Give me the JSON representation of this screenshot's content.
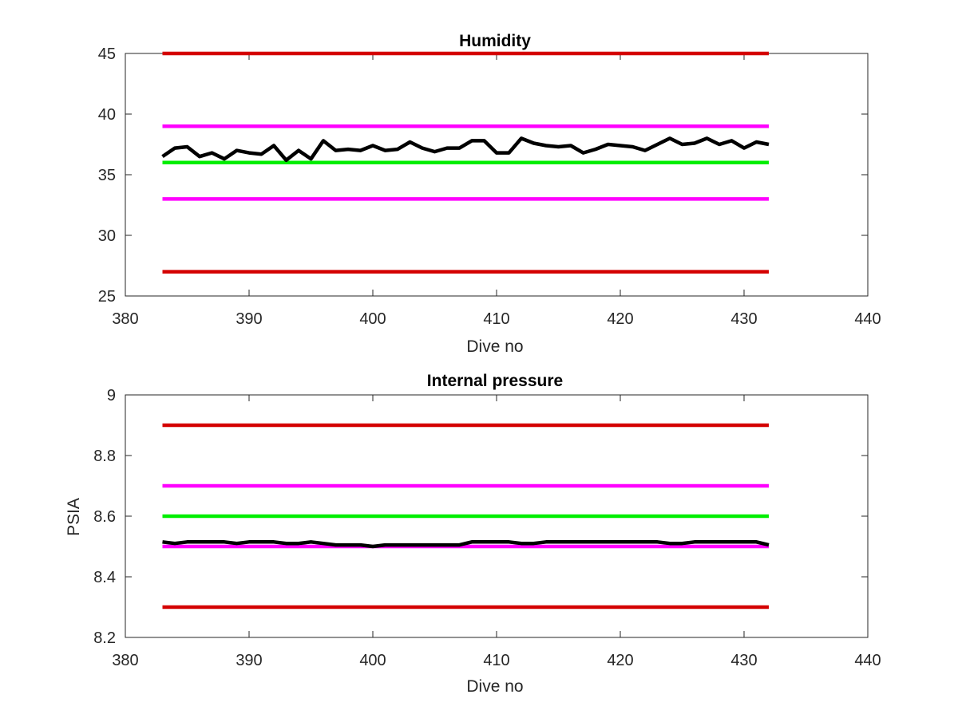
{
  "chart_data": [
    {
      "type": "line",
      "title": "Humidity",
      "xlabel": "Dive no",
      "ylabel": "",
      "xlim": [
        380,
        440
      ],
      "ylim": [
        25,
        45
      ],
      "xticks": [
        "380",
        "390",
        "400",
        "410",
        "420",
        "430",
        "440"
      ],
      "yticks": [
        "25",
        "30",
        "35",
        "40",
        "45"
      ],
      "grid": false,
      "limits": [
        {
          "value": 45,
          "color": "#d40000"
        },
        {
          "value": 39,
          "color": "#ff00ff"
        },
        {
          "value": 36,
          "color": "#00ee00"
        },
        {
          "value": 33,
          "color": "#ff00ff"
        },
        {
          "value": 27,
          "color": "#d40000"
        }
      ],
      "limits_x_range": [
        383,
        432
      ],
      "series": [
        {
          "color": "#000000",
          "x": [
            383,
            384,
            385,
            386,
            387,
            388,
            389,
            390,
            391,
            392,
            393,
            394,
            395,
            396,
            397,
            398,
            399,
            400,
            401,
            402,
            403,
            404,
            405,
            406,
            407,
            408,
            409,
            410,
            411,
            412,
            413,
            414,
            415,
            416,
            417,
            418,
            419,
            420,
            421,
            422,
            423,
            424,
            425,
            426,
            427,
            428,
            429,
            430,
            431,
            432
          ],
          "y": [
            36.5,
            37.2,
            37.3,
            36.5,
            36.8,
            36.3,
            37.0,
            36.8,
            36.7,
            37.4,
            36.2,
            37.0,
            36.3,
            37.8,
            37.0,
            37.1,
            37.0,
            37.4,
            37.0,
            37.1,
            37.7,
            37.2,
            36.9,
            37.2,
            37.2,
            37.8,
            37.8,
            36.8,
            36.8,
            38.0,
            37.6,
            37.4,
            37.3,
            37.4,
            36.8,
            37.1,
            37.5,
            37.4,
            37.3,
            37.0,
            37.5,
            38.0,
            37.5,
            37.6,
            38.0,
            37.5,
            37.8,
            37.2,
            37.7,
            37.5
          ]
        }
      ]
    },
    {
      "type": "line",
      "title": "Internal pressure",
      "xlabel": "Dive no",
      "ylabel": "PSIA",
      "xlim": [
        380,
        440
      ],
      "ylim": [
        8.2,
        9
      ],
      "xticks": [
        "380",
        "390",
        "400",
        "410",
        "420",
        "430",
        "440"
      ],
      "yticks": [
        "8.2",
        "8.4",
        "8.6",
        "8.8",
        "9"
      ],
      "grid": false,
      "limits": [
        {
          "value": 8.9,
          "color": "#d40000"
        },
        {
          "value": 8.7,
          "color": "#ff00ff"
        },
        {
          "value": 8.6,
          "color": "#00ee00"
        },
        {
          "value": 8.5,
          "color": "#ff00ff"
        },
        {
          "value": 8.3,
          "color": "#d40000"
        }
      ],
      "limits_x_range": [
        383,
        432
      ],
      "series": [
        {
          "color": "#000000",
          "x": [
            383,
            384,
            385,
            386,
            387,
            388,
            389,
            390,
            391,
            392,
            393,
            394,
            395,
            396,
            397,
            398,
            399,
            400,
            401,
            402,
            403,
            404,
            405,
            406,
            407,
            408,
            409,
            410,
            411,
            412,
            413,
            414,
            415,
            416,
            417,
            418,
            419,
            420,
            421,
            422,
            423,
            424,
            425,
            426,
            427,
            428,
            429,
            430,
            431,
            432
          ],
          "y": [
            8.515,
            8.51,
            8.515,
            8.515,
            8.515,
            8.515,
            8.51,
            8.515,
            8.515,
            8.515,
            8.51,
            8.51,
            8.515,
            8.51,
            8.505,
            8.505,
            8.505,
            8.5,
            8.505,
            8.505,
            8.505,
            8.505,
            8.505,
            8.505,
            8.505,
            8.515,
            8.515,
            8.515,
            8.515,
            8.51,
            8.51,
            8.515,
            8.515,
            8.515,
            8.515,
            8.515,
            8.515,
            8.515,
            8.515,
            8.515,
            8.515,
            8.51,
            8.51,
            8.515,
            8.515,
            8.515,
            8.515,
            8.515,
            8.515,
            8.505
          ]
        }
      ]
    }
  ]
}
